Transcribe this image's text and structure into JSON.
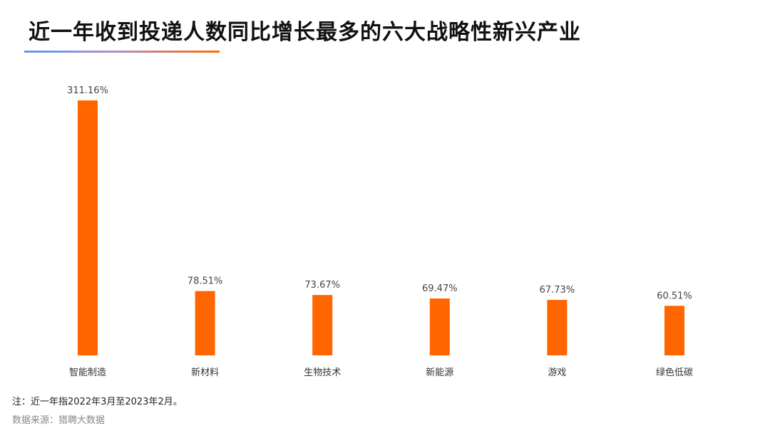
{
  "title": "近一年收到投递人数同比增长最多的六大战略性新兴产业",
  "note": "注：近一年指2022年3月至2023年2月。",
  "source": "数据来源：猎聘大数据",
  "colors": {
    "bar": "#ff6600",
    "accent_underline": [
      "#5b9bf0",
      "#ff6a00"
    ]
  },
  "chart_data": {
    "type": "bar",
    "categories": [
      "智能制造",
      "新材料",
      "生物技术",
      "新能源",
      "游戏",
      "绿色低碳"
    ],
    "values": [
      311.16,
      78.51,
      73.67,
      69.47,
      67.73,
      60.51
    ],
    "value_labels": [
      "311.16%",
      "78.51%",
      "73.67%",
      "69.47%",
      "67.73%",
      "60.51%"
    ],
    "unit": "%",
    "ylim": [
      0,
      311.16
    ],
    "grid": false,
    "legend": "none"
  }
}
